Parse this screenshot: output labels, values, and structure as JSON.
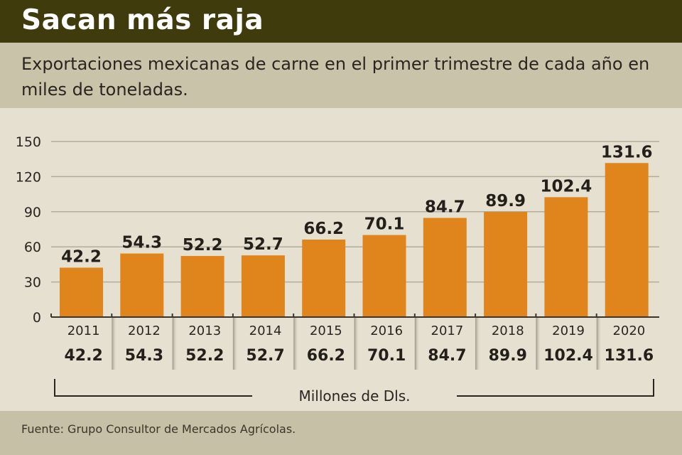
{
  "header": {
    "title": "Sacan más raja",
    "subtitle": "Exportaciones mexicanas de carne en el primer trimestre de cada año en miles de toneladas."
  },
  "footer": {
    "source": "Fuente: Grupo Consultor de Mercados Agrícolas."
  },
  "colors": {
    "bar": "#e0841c",
    "title_bg": "#403b0d"
  },
  "chart_data": {
    "type": "bar",
    "title": "Sacan más raja",
    "categories": [
      "2011",
      "2012",
      "2013",
      "2014",
      "2015",
      "2016",
      "2017",
      "2018",
      "2019",
      "2020"
    ],
    "values": [
      42.2,
      54.3,
      52.2,
      52.7,
      66.2,
      70.1,
      84.7,
      89.9,
      102.4,
      131.6
    ],
    "value_labels": [
      "42.2",
      "54.3",
      "52.2",
      "52.7",
      "66.2",
      "70.1",
      "84.7",
      "89.9",
      "102.4",
      "131.6"
    ],
    "secondary_row": {
      "label": "Millones de Dls.",
      "values": [
        "42.2",
        "54.3",
        "52.2",
        "52.7",
        "66.2",
        "70.1",
        "84.7",
        "89.9",
        "102.4",
        "131.6"
      ]
    },
    "yticks": [
      "0",
      "30",
      "60",
      "90",
      "120",
      "150"
    ],
    "ylim": [
      0,
      150
    ],
    "grid": true
  }
}
